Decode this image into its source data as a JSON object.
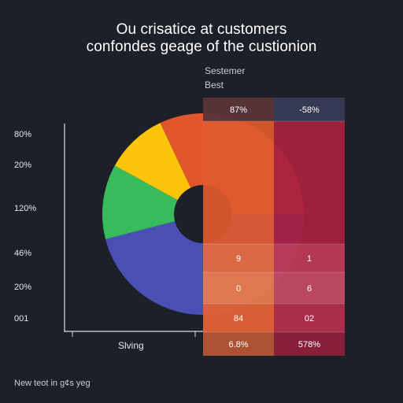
{
  "chart_data": {
    "type": "pie",
    "title": "Ou crisatice at customers",
    "subtitle": "confondes geage of the custionion",
    "legend": [
      "Sestemer",
      "Best"
    ],
    "yticks": [
      "80%",
      "20%",
      "120%",
      "46%",
      "20%",
      "001"
    ],
    "xlabel": "Slving",
    "slices": [
      {
        "value": 46,
        "color": "#4a4fb3"
      },
      {
        "value": 12,
        "color": "#37bb5b"
      },
      {
        "value": 10,
        "color": "#fbc60a"
      },
      {
        "value": 32,
        "color": "#e2562d"
      }
    ],
    "table": {
      "rows": [
        [
          "87%",
          "-58%"
        ],
        [
          "",
          ""
        ],
        [
          "9",
          "1"
        ],
        [
          "0",
          "6"
        ],
        [
          "84",
          "02"
        ],
        [
          "6.8%",
          "578%"
        ]
      ],
      "column_colors": [
        "#e05a2b",
        "#a8213f"
      ],
      "header_colors": [
        "#5a3438",
        "#363a55"
      ]
    }
  },
  "footer": "New teot in g¢s yeg"
}
